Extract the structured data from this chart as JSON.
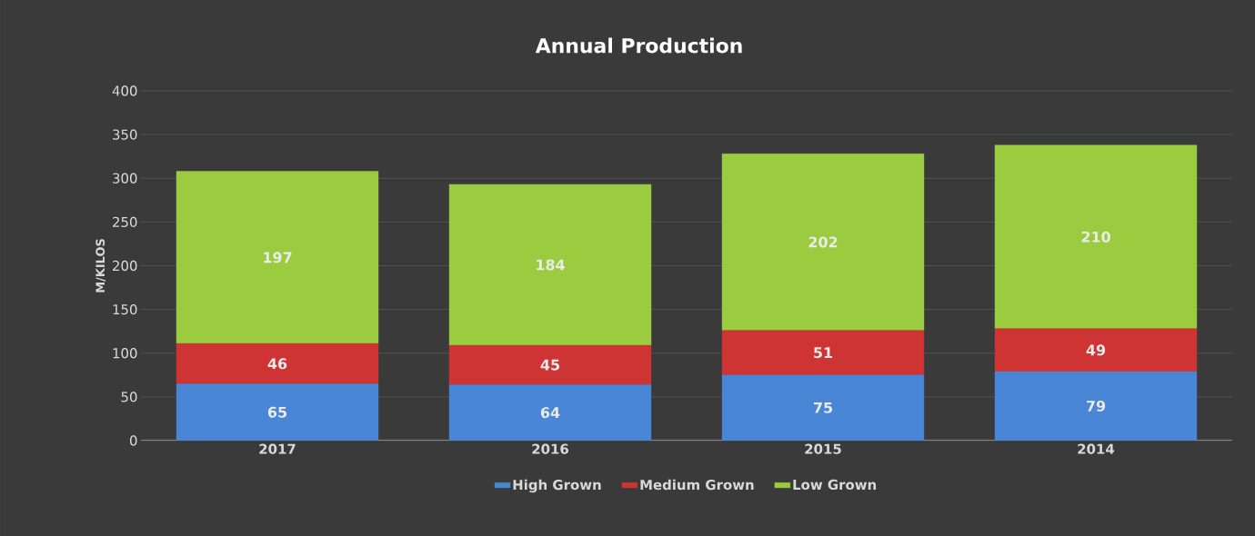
{
  "chart_data": {
    "type": "bar",
    "title": "Annual Production",
    "ylabel": "M/KILOS",
    "categories": [
      "2017",
      "2016",
      "2015",
      "2014"
    ],
    "series": [
      {
        "name": "High Grown",
        "color": "#4a86d6",
        "values": [
          65,
          64,
          75,
          79
        ]
      },
      {
        "name": "Medium Grown",
        "color": "#cf3434",
        "values": [
          46,
          45,
          51,
          49
        ]
      },
      {
        "name": "Low Grown",
        "color": "#9bcb3e",
        "values": [
          197,
          184,
          202,
          210
        ]
      }
    ],
    "stacked": true,
    "ylim": [
      0,
      400
    ],
    "yticks": [
      0,
      50,
      100,
      150,
      200,
      250,
      300,
      350,
      400
    ],
    "grid": "y",
    "legend": "bottom",
    "data_labels": true
  }
}
